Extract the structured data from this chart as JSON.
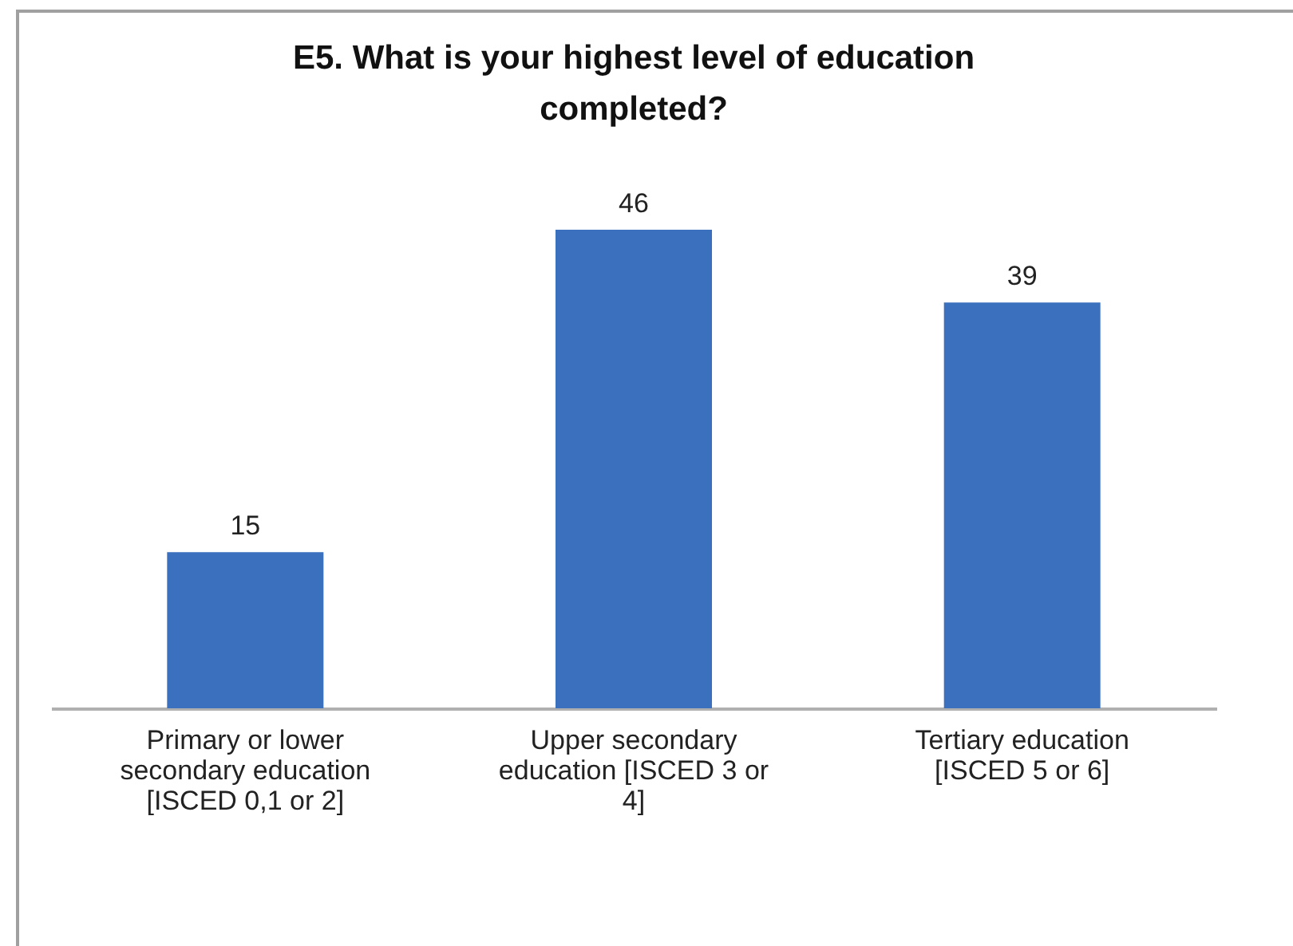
{
  "chart_data": {
    "type": "bar",
    "title": "E5. What is your highest level of education completed?",
    "categories": [
      "Primary or lower secondary education [ISCED 0,1 or 2]",
      "Upper secondary education [ISCED 3 or 4]",
      "Tertiary education [ISCED 5 or 6]"
    ],
    "values": [
      15,
      46,
      39
    ],
    "color": "#3b70bf",
    "data_labels": true
  }
}
